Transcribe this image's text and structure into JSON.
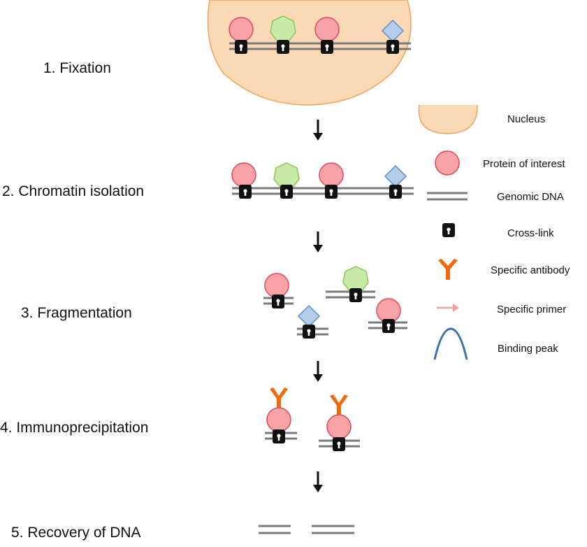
{
  "steps": [
    {
      "label": "1.  Fixation"
    },
    {
      "label": "2. Chromatin isolation"
    },
    {
      "label": "3. Fragmentation"
    },
    {
      "label": "4. Immunoprecipitation"
    },
    {
      "label": "5. Recovery of DNA"
    }
  ],
  "legend": [
    {
      "label": "Nucleus",
      "icon": "nucleus-icon"
    },
    {
      "label": "Protein of interest",
      "icon": "protein-circle-icon"
    },
    {
      "label": "Genomic DNA",
      "icon": "dna-lines-icon"
    },
    {
      "label": "Cross-link",
      "icon": "padlock-icon"
    },
    {
      "label": "Specific antibody",
      "icon": "antibody-y-icon"
    },
    {
      "label": "Specific primer",
      "icon": "arrow-icon"
    },
    {
      "label": "Binding peak",
      "icon": "peak-curve-icon"
    }
  ],
  "colors": {
    "nucleus_fill": "#fbd9b4",
    "nucleus_stroke": "#f2a35a",
    "protein_fill": "#f7a3a8",
    "protein_stroke": "#e0485a",
    "heptagon_fill": "#c9e9a7",
    "heptagon_stroke": "#8cc55e",
    "diamond_fill": "#b3cdea",
    "diamond_stroke": "#5f8fc7",
    "dna": "#7a7a7a",
    "lock": "#111111",
    "antibody": "#f06a10",
    "primer": "#f0a0a0",
    "peak": "#3f6fb0"
  }
}
